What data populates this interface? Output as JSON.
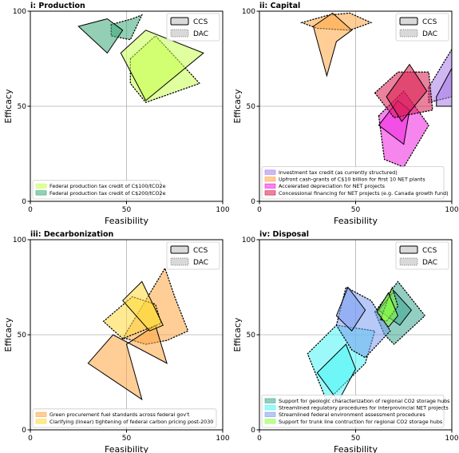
{
  "chart_data": [
    {
      "type": "area",
      "title": "i: Production",
      "xlabel": "Feasibility",
      "ylabel": "Efficacy",
      "xlim": [
        0,
        100
      ],
      "ylim": [
        0,
        100
      ],
      "xticks": [
        "0",
        "50",
        "100"
      ],
      "yticks": [
        "0",
        "50",
        "100"
      ],
      "grid": "center crosshair at 50",
      "inset_legend": {
        "placement": "top-right",
        "items": [
          "CCS",
          "DAC"
        ]
      },
      "legend": {
        "placement": "bottom-left"
      },
      "series": [
        {
          "name": "Federal production tax credit of C$100/tCO2e",
          "color": "#c6ff4f",
          "ccs": [
            [
              47,
              78
            ],
            [
              60,
              90
            ],
            [
              90,
              78
            ],
            [
              60,
              53
            ]
          ],
          "dac": [
            [
              52,
              75
            ],
            [
              65,
              87
            ],
            [
              88,
              62
            ],
            [
              60,
              52
            ],
            [
              52,
              62
            ]
          ]
        },
        {
          "name": "Federal production tax credit of C$200/tCO2e",
          "color": "#3aa876",
          "ccs": [
            [
              25,
              92
            ],
            [
              40,
              96
            ],
            [
              48,
              90
            ],
            [
              40,
              78
            ]
          ],
          "dac": [
            [
              42,
              93
            ],
            [
              53,
              96
            ],
            [
              58,
              98
            ],
            [
              52,
              85
            ],
            [
              42,
              87
            ]
          ]
        }
      ]
    },
    {
      "type": "area",
      "title": "ii: Capital",
      "xlabel": "Feasibility",
      "ylabel": "Efficacy",
      "xlim": [
        0,
        100
      ],
      "ylim": [
        0,
        100
      ],
      "xticks": [
        "0",
        "50",
        "100"
      ],
      "yticks": [
        "0",
        "50",
        "100"
      ],
      "grid": "center crosshair at 50",
      "inset_legend": {
        "placement": "top-right",
        "items": [
          "CCS",
          "DAC"
        ]
      },
      "legend": {
        "placement": "bottom-left"
      },
      "series": [
        {
          "name": "Investment tax credit (as currently structured)",
          "color": "#a87ce8",
          "ccs": [
            [
              92,
              55
            ],
            [
              100,
              70
            ],
            [
              100,
              50
            ],
            [
              92,
              50
            ]
          ],
          "dac": [
            [
              88,
              60
            ],
            [
              100,
              80
            ],
            [
              100,
              55
            ],
            [
              88,
              52
            ]
          ]
        },
        {
          "name": "Upfront cash-grants of C$10 billion for first 10 NET plants",
          "color": "#ffa542",
          "ccs": [
            [
              28,
              92
            ],
            [
              38,
              99
            ],
            [
              48,
              90
            ],
            [
              40,
              84
            ],
            [
              35,
              66
            ]
          ],
          "dac": [
            [
              22,
              94
            ],
            [
              36,
              98
            ],
            [
              47,
              99
            ],
            [
              58,
              94
            ],
            [
              47,
              90
            ],
            [
              30,
              91
            ]
          ]
        },
        {
          "name": "Accelerated depreciation for NET projects",
          "color": "#f020e0",
          "ccs": [
            [
              62,
              40
            ],
            [
              72,
              53
            ],
            [
              78,
              48
            ],
            [
              75,
              30
            ]
          ],
          "dac": [
            [
              62,
              45
            ],
            [
              75,
              58
            ],
            [
              88,
              40
            ],
            [
              75,
              18
            ],
            [
              65,
              22
            ]
          ]
        },
        {
          "name": "Concessional financing for NET projects (e.g. Canada growth fund)",
          "color": "#d81b4f",
          "ccs": [
            [
              66,
              55
            ],
            [
              78,
              72
            ],
            [
              87,
              58
            ],
            [
              74,
              42
            ]
          ],
          "dac": [
            [
              60,
              57
            ],
            [
              72,
              68
            ],
            [
              88,
              68
            ],
            [
              90,
              48
            ],
            [
              70,
              44
            ]
          ]
        }
      ]
    },
    {
      "type": "area",
      "title": "iii: Decarbonization",
      "xlabel": "Feasibility",
      "ylabel": "Efficacy",
      "xlim": [
        0,
        100
      ],
      "ylim": [
        0,
        100
      ],
      "xticks": [
        "0",
        "50",
        "100"
      ],
      "yticks": [
        "0",
        "50",
        "100"
      ],
      "grid": "center crosshair at 50",
      "inset_legend": {
        "placement": "top-right",
        "items": [
          "CCS",
          "DAC"
        ]
      },
      "legend": {
        "placement": "bottom-left"
      },
      "series": [
        {
          "name": "Green procurement fuel standards across federal gov't",
          "color": "#ffa542",
          "ccs": [
            [
              30,
              35
            ],
            [
              43,
              50
            ],
            [
              71,
              35
            ],
            [
              65,
              55
            ],
            [
              50,
              45
            ],
            [
              58,
              16
            ]
          ],
          "dac": [
            [
              48,
              48
            ],
            [
              70,
              85
            ],
            [
              75,
              70
            ],
            [
              82,
              52
            ],
            [
              71,
              47
            ],
            [
              60,
              45
            ],
            [
              50,
              48
            ]
          ]
        },
        {
          "name": "Clarifying (linear) tightening of federal carbon pricing post-2030",
          "color": "#ffd83a",
          "ccs": [
            [
              48,
              68
            ],
            [
              58,
              78
            ],
            [
              69,
              55
            ],
            [
              62,
              52
            ]
          ],
          "dac": [
            [
              38,
              57
            ],
            [
              53,
              70
            ],
            [
              65,
              66
            ],
            [
              68,
              56
            ],
            [
              48,
              48
            ]
          ]
        }
      ]
    },
    {
      "type": "area",
      "title": "iv: Disposal",
      "xlabel": "Feasibility",
      "ylabel": "Efficacy",
      "xlim": [
        0,
        100
      ],
      "ylim": [
        0,
        100
      ],
      "xticks": [
        "0",
        "50",
        "100"
      ],
      "yticks": [
        "0",
        "50",
        "100"
      ],
      "grid": "center crosshair at 50",
      "inset_legend": {
        "placement": "top-right",
        "items": [
          "CCS",
          "DAC"
        ]
      },
      "legend": {
        "placement": "bottom-left"
      },
      "series": [
        {
          "name": "Support for geologic characterization of regional CO2 storage hubs",
          "color": "#3aa58f",
          "ccs": [
            [
              62,
              63
            ],
            [
              70,
              73
            ],
            [
              79,
              63
            ],
            [
              73,
              55
            ]
          ],
          "dac": [
            [
              60,
              62
            ],
            [
              72,
              78
            ],
            [
              86,
              60
            ],
            [
              70,
              45
            ],
            [
              65,
              50
            ]
          ]
        },
        {
          "name": "Streamlined regulatory procedures for interprovincial NET projects",
          "color": "#4af4f4",
          "ccs": [
            [
              30,
              30
            ],
            [
              45,
              45
            ],
            [
              50,
              32
            ],
            [
              41,
              15
            ]
          ],
          "dac": [
            [
              25,
              40
            ],
            [
              40,
              55
            ],
            [
              60,
              52
            ],
            [
              55,
              35
            ],
            [
              35,
              15
            ]
          ]
        },
        {
          "name": "Streamlined federal environment assessment procedures",
          "color": "#7a9cf0",
          "ccs": [
            [
              40,
              60
            ],
            [
              46,
              75
            ],
            [
              55,
              63
            ],
            [
              48,
              52
            ]
          ],
          "dac": [
            [
              40,
              55
            ],
            [
              45,
              75
            ],
            [
              58,
              68
            ],
            [
              68,
              52
            ],
            [
              55,
              38
            ],
            [
              48,
              42
            ]
          ]
        },
        {
          "name": "Support for trunk line contruction for regional CO2 storage hubs",
          "color": "#8cff3c",
          "ccs": [
            [
              61,
              62
            ],
            [
              67,
              72
            ],
            [
              72,
              60
            ],
            [
              67,
              54
            ]
          ],
          "dac": [
            [
              63,
              58
            ],
            [
              69,
              75
            ],
            [
              72,
              65
            ],
            [
              66,
              57
            ]
          ]
        }
      ]
    }
  ]
}
